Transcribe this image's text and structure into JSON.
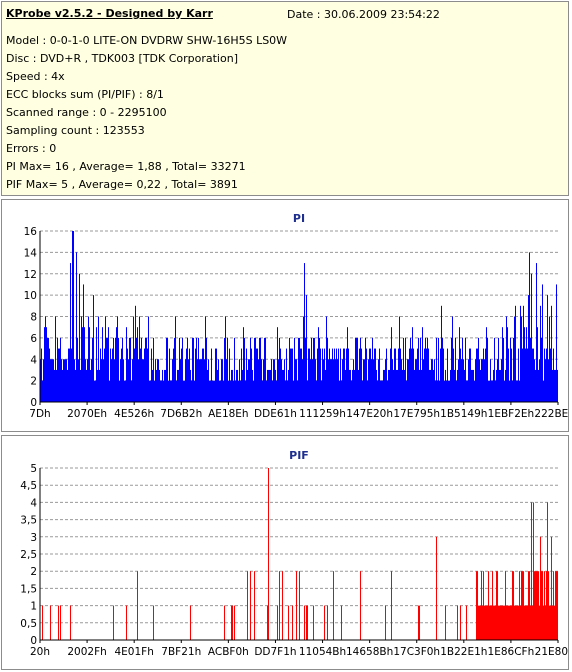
{
  "header": {
    "title": "KProbe v2.5.2 - Designed by Karr",
    "date": "Date : 30.06.2009 23:54:22"
  },
  "info": {
    "model": "Model : 0-0-1-0 LITE-ON DVDRW SHW-16H5S  LS0W",
    "disc": "Disc : DVD+R , TDK003 [TDK Corporation]",
    "speed": "Speed : 4x",
    "ecc": "ECC blocks sum (PI/PIF) : 8/1",
    "range": "Scanned range : 0 - 2295100",
    "sampling": "Sampling count : 123553",
    "errors": "Errors : 0",
    "pi": "PI Max= 16 , Average= 1,88 , Total= 33271",
    "pif": "PIF Max= 5 , Average= 0,22 , Total= 3891"
  },
  "chart_data": [
    {
      "type": "bar",
      "title": "PI",
      "color": "#0000ff",
      "ylim": [
        0,
        16
      ],
      "yticks": [
        "0",
        "2",
        "4",
        "6",
        "8",
        "10",
        "12",
        "14",
        "16"
      ],
      "xticks": [
        "7Dh",
        "2070Eh",
        "4E526h",
        "7D6B2h",
        "AE18Eh",
        "DDE61h",
        "111259h",
        "147E20h",
        "17E795h",
        "1B5149h",
        "1EBF2Eh",
        "222BEEh"
      ],
      "grid": true,
      "x_range": [
        0,
        2295100
      ],
      "baseline_range": [
        2,
        6
      ],
      "peaks": [
        {
          "x": 28000,
          "value": 7
        },
        {
          "x": 140000,
          "value": 16
        },
        {
          "x": 148000,
          "value": 16
        },
        {
          "x": 160000,
          "value": 14
        },
        {
          "x": 135000,
          "value": 13
        },
        {
          "x": 175000,
          "value": 12
        },
        {
          "x": 190000,
          "value": 11
        },
        {
          "x": 290000,
          "value": 8
        },
        {
          "x": 420000,
          "value": 9
        },
        {
          "x": 480000,
          "value": 8
        },
        {
          "x": 600000,
          "value": 8
        },
        {
          "x": 900000,
          "value": 7
        },
        {
          "x": 1050000,
          "value": 7
        },
        {
          "x": 1170000,
          "value": 13
        },
        {
          "x": 1180000,
          "value": 10
        },
        {
          "x": 1240000,
          "value": 6
        },
        {
          "x": 1420000,
          "value": 6
        },
        {
          "x": 1560000,
          "value": 7
        },
        {
          "x": 1780000,
          "value": 9
        },
        {
          "x": 1830000,
          "value": 8
        },
        {
          "x": 1860000,
          "value": 7
        },
        {
          "x": 2050000,
          "value": 6
        },
        {
          "x": 2130000,
          "value": 7
        },
        {
          "x": 2170000,
          "value": 14
        },
        {
          "x": 2180000,
          "value": 12
        },
        {
          "x": 2200000,
          "value": 13
        },
        {
          "x": 2230000,
          "value": 11
        },
        {
          "x": 2250000,
          "value": 10
        },
        {
          "x": 2270000,
          "value": 9
        }
      ]
    },
    {
      "type": "bar",
      "title": "PIF",
      "color": "#ff0000",
      "ylim": [
        0,
        5
      ],
      "yticks": [
        "0",
        "0,5",
        "1",
        "1,5",
        "2",
        "2,5",
        "3",
        "3,5",
        "4",
        "4,5",
        "5"
      ],
      "xticks": [
        "20h",
        "2002Fh",
        "4E01Fh",
        "7BF21h",
        "ACBF0h",
        "DD7F1h",
        "11054Bh",
        "14658Bh",
        "17C3F0h",
        "1B22E1h",
        "1E86CFh",
        "21E801h"
      ],
      "grid": true,
      "x_range": [
        0,
        2295100
      ],
      "peaks": [
        {
          "x": 90000,
          "value": 1
        },
        {
          "x": 380000,
          "value": 1
        },
        {
          "x": 430000,
          "value": 2
        },
        {
          "x": 500000,
          "value": 1
        },
        {
          "x": 860000,
          "value": 1
        },
        {
          "x": 920000,
          "value": 2
        },
        {
          "x": 950000,
          "value": 2
        },
        {
          "x": 1010000,
          "value": 5
        },
        {
          "x": 1060000,
          "value": 2
        },
        {
          "x": 1150000,
          "value": 2
        },
        {
          "x": 1300000,
          "value": 2
        },
        {
          "x": 1420000,
          "value": 2
        },
        {
          "x": 1560000,
          "value": 2
        },
        {
          "x": 1680000,
          "value": 1
        },
        {
          "x": 1760000,
          "value": 3
        },
        {
          "x": 1850000,
          "value": 1
        },
        {
          "x": 2100000,
          "value": 2
        },
        {
          "x": 2180000,
          "value": 4
        },
        {
          "x": 2190000,
          "value": 4
        },
        {
          "x": 2220000,
          "value": 3
        },
        {
          "x": 2250000,
          "value": 4
        },
        {
          "x": 2270000,
          "value": 3
        }
      ]
    }
  ]
}
